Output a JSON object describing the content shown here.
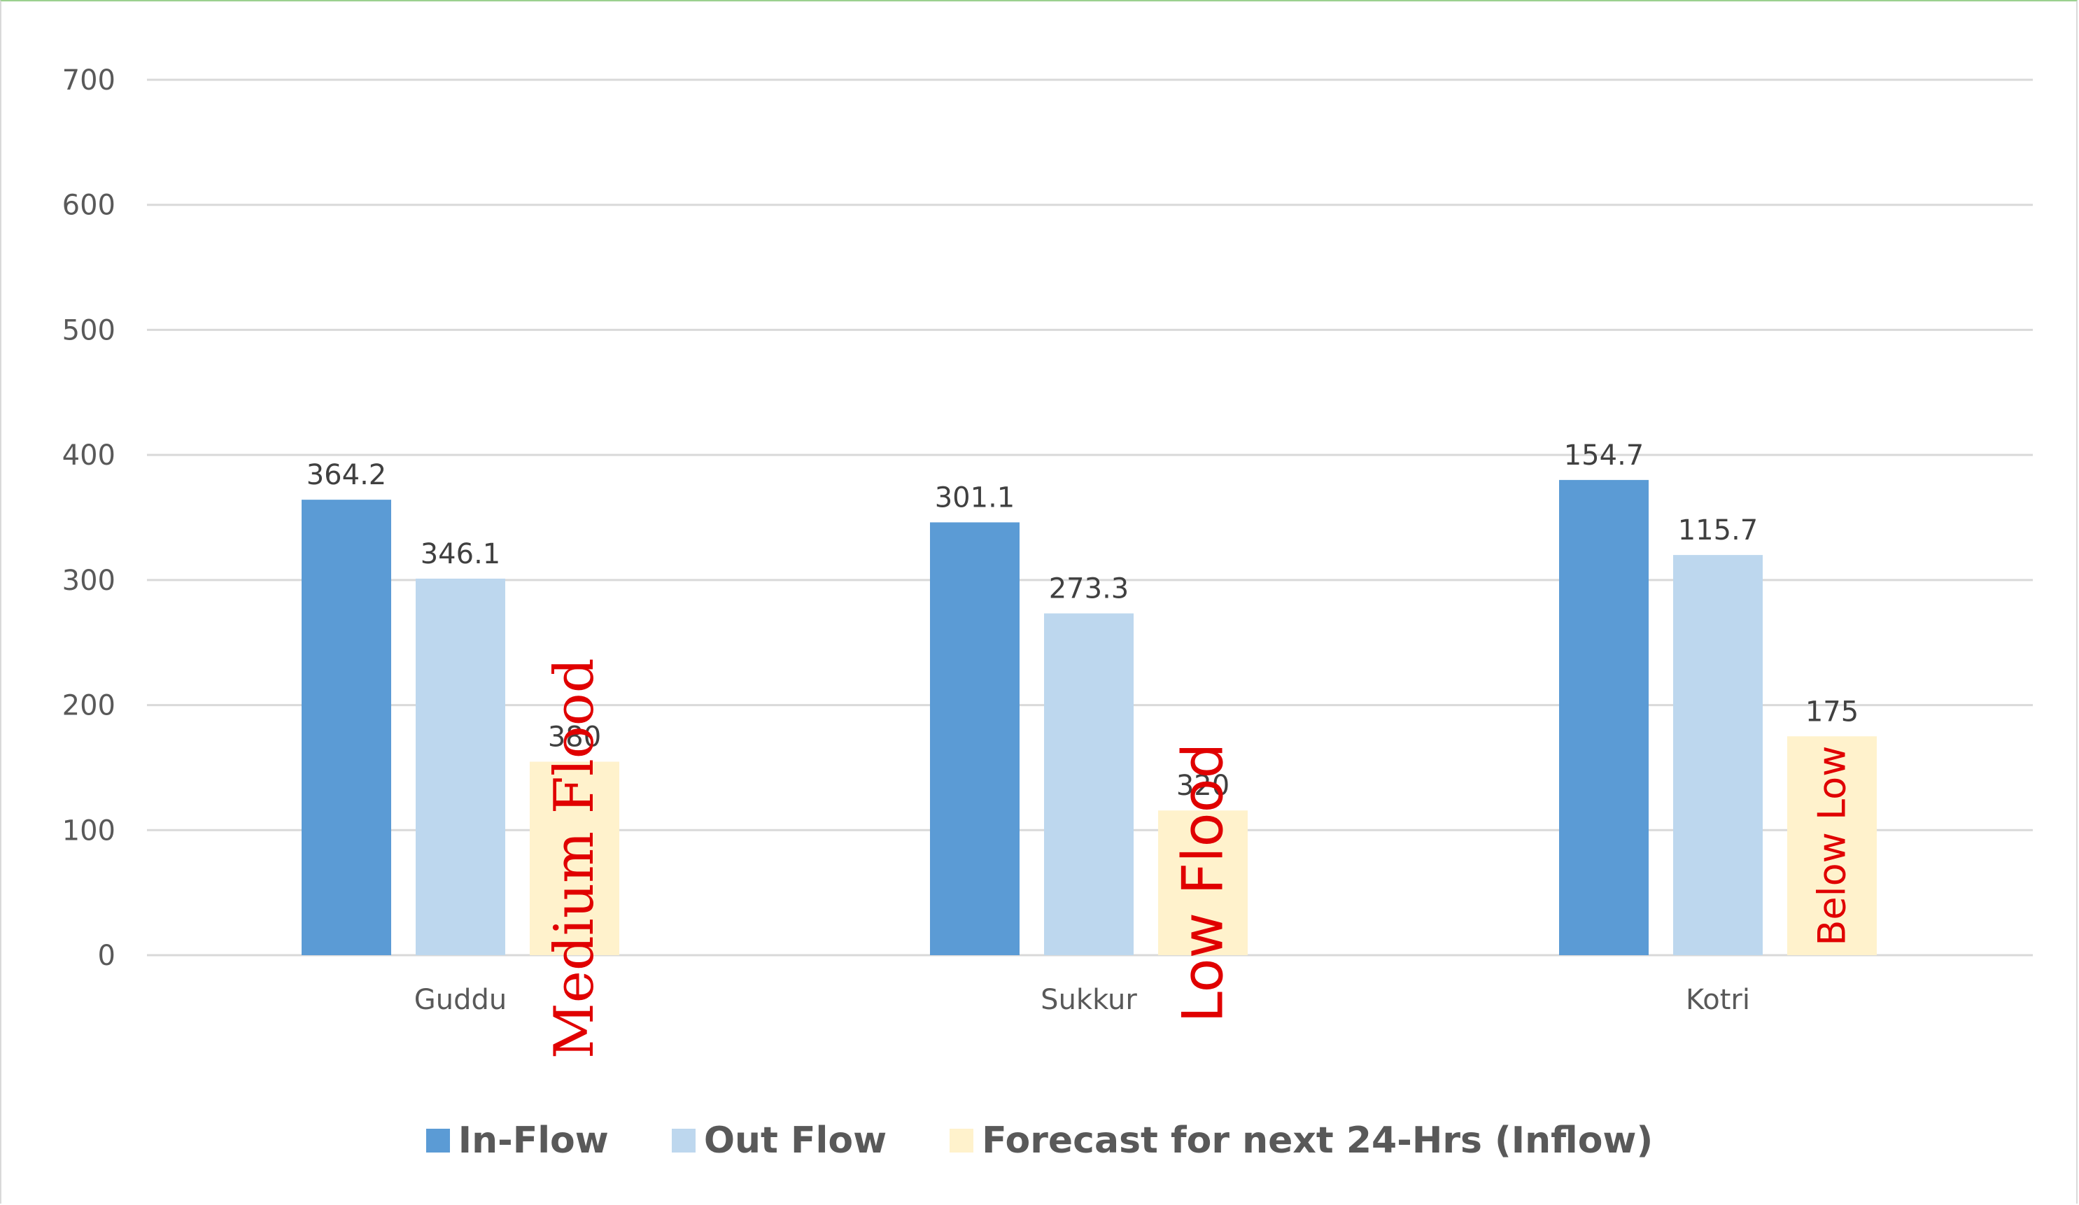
{
  "chart_data": {
    "type": "bar",
    "categories": [
      "Guddu",
      "Sukkur",
      "Kotri"
    ],
    "series": [
      {
        "name": "In-Flow",
        "values": [
          364.2,
          346.1,
          380
        ],
        "color": "#5b9bd5"
      },
      {
        "name": "Out Flow",
        "values": [
          301.1,
          273.3,
          320
        ],
        "color": "#bdd7ee"
      },
      {
        "name": "Forecast for next 24-Hrs (Inflow)",
        "values": [
          154.7,
          115.7,
          175
        ],
        "color": "#fff2cc"
      }
    ],
    "data_labels": [
      [
        "364.2",
        "301.1",
        "154.7"
      ],
      [
        "346.1",
        "273.3",
        "115.7"
      ],
      [
        "380",
        "320",
        "175"
      ]
    ],
    "annotations": [
      "Medium Flood",
      "Low Flood",
      "Below Low"
    ],
    "annotation_color": "#e00000",
    "ylim": [
      0,
      700
    ],
    "yticks": [
      0,
      100,
      200,
      300,
      400,
      500,
      600,
      700
    ],
    "grid": true,
    "legend_position": "bottom",
    "title": "",
    "xlabel": "",
    "ylabel": ""
  }
}
